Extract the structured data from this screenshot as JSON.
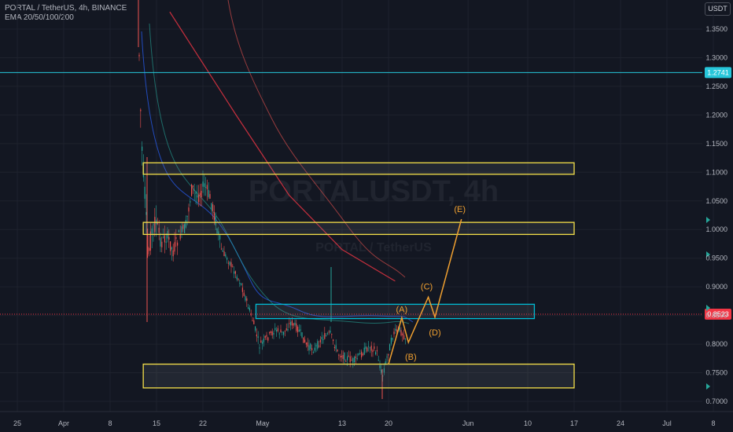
{
  "header": {
    "title": "PORTAL / TetherUS, 4h, BINANCE",
    "indicator": "EMA 20/50/100/200",
    "currency": "USDT"
  },
  "colors": {
    "background": "#131722",
    "grid": "#1e222d",
    "candle_up": "#26a69a",
    "candle_down": "#ef5350",
    "zone_yellow": "#f5e04a",
    "zone_cyan": "#00bcd4",
    "wave_orange": "#f0a030",
    "ema20": "#2962ff",
    "ema50": "#26a69a",
    "ema100": "#ef5350",
    "ema200": "#f23645",
    "price_badge": "#f23645",
    "level_badge": "#26c6da"
  },
  "chart_data": {
    "type": "candlestick",
    "symbol": "PORTAL / TetherUS",
    "timeframe": "4h",
    "exchange": "BINANCE",
    "currency": "USDT",
    "y_axis": {
      "ticks": [
        "1.3500",
        "1.3000",
        "1.2500",
        "1.2000",
        "1.1500",
        "1.1000",
        "1.0500",
        "1.0000",
        "0.9500",
        "0.9000",
        "0.8500",
        "0.8000",
        "0.7500",
        "0.7000"
      ],
      "range": [
        0.695,
        1.395
      ]
    },
    "x_axis": {
      "labels": [
        "25",
        "Apr",
        "8",
        "15",
        "22",
        "May",
        "13",
        "20",
        "Jun",
        "10",
        "17",
        "24",
        "Jul",
        "8"
      ]
    },
    "last_price": 0.8523,
    "last_price_label": "0.8523",
    "horizontal_line": 1.2741,
    "horizontal_line_label": "1.2741",
    "zones": [
      {
        "color": "yellow",
        "low": 1.0965,
        "high": 1.1165,
        "start": "Apr 13",
        "end": "Jun 17"
      },
      {
        "color": "yellow",
        "low": 0.9915,
        "high": 1.0125,
        "start": "Apr 13",
        "end": "Jun 17"
      },
      {
        "color": "cyan",
        "low": 0.8445,
        "high": 0.8695,
        "start": "Apr 30",
        "end": "Jun 11"
      },
      {
        "color": "yellow",
        "low": 0.7235,
        "high": 0.765,
        "start": "Apr 13",
        "end": "Jun 17"
      }
    ],
    "wave_projection": {
      "points": [
        {
          "label": "",
          "date": "May 20",
          "price": 0.765
        },
        {
          "label": "(A)",
          "date": "May 22",
          "price": 0.846
        },
        {
          "label": "(B)",
          "date": "May 23",
          "price": 0.803
        },
        {
          "label": "(C)",
          "date": "May 26",
          "price": 0.882
        },
        {
          "label": "(D)",
          "date": "May 27",
          "price": 0.847
        },
        {
          "label": "(E)",
          "date": "May 31",
          "price": 1.018
        }
      ]
    },
    "ema200_path": [
      {
        "date": "Apr 17",
        "price": 1.38
      },
      {
        "date": "Apr 27",
        "price": 1.2
      },
      {
        "date": "May 5",
        "price": 1.06
      },
      {
        "date": "May 13",
        "price": 0.965
      },
      {
        "date": "May 21",
        "price": 0.91
      }
    ]
  },
  "watermark": {
    "symbol": "PORTALUSDT, 4h",
    "name": "PORTAL / TetherUS"
  }
}
